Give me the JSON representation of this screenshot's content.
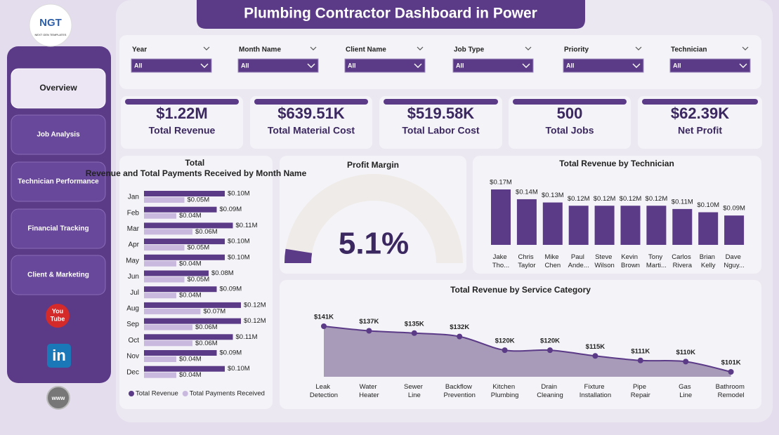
{
  "header": {
    "logo": "NGT",
    "logo_subtitle": "NEXT GEN TEMPLATES",
    "title": "Plumbing Contractor Dashboard in Power"
  },
  "nav": [
    "Overview",
    "Job Analysis",
    "Technician Performance",
    "Financial Tracking",
    "Client & Marketing"
  ],
  "icons": {
    "youtube": [
      "You",
      "Tube"
    ],
    "linkedin": "in",
    "web": "www"
  },
  "filters": [
    {
      "label": "Year",
      "value": "All"
    },
    {
      "label": "Month Name",
      "value": "All"
    },
    {
      "label": "Client Name",
      "value": "All"
    },
    {
      "label": "Job Type",
      "value": "All"
    },
    {
      "label": "Priority",
      "value": "All"
    },
    {
      "label": "Technician",
      "value": "All"
    }
  ],
  "kpis": [
    {
      "value": "$1.22M",
      "label": "Total Revenue"
    },
    {
      "value": "$639.51K",
      "label": "Total Material Cost"
    },
    {
      "value": "$519.58K",
      "label": "Total Labor Cost"
    },
    {
      "value": "500",
      "label": "Total Jobs"
    },
    {
      "value": "$62.39K",
      "label": "Net Profit"
    }
  ],
  "chart_data": [
    {
      "type": "hbar",
      "title": "Total Revenue and Total Payments Received by Month Name",
      "categories": [
        "Jan",
        "Feb",
        "Mar",
        "Apr",
        "May",
        "Jun",
        "Jul",
        "Aug",
        "Sep",
        "Oct",
        "Nov",
        "Dec"
      ],
      "series": [
        {
          "name": "Total Revenue",
          "color": "#5b3a87",
          "values": [
            0.1,
            0.09,
            0.11,
            0.1,
            0.1,
            0.08,
            0.09,
            0.12,
            0.12,
            0.11,
            0.09,
            0.1
          ],
          "value_labels": [
            "$0.10M",
            "$0.09M",
            "$0.11M",
            "$0.10M",
            "$0.10M",
            "$0.08M",
            "$0.09M",
            "$0.12M",
            "$0.12M",
            "$0.11M",
            "$0.09M",
            "$0.10M"
          ]
        },
        {
          "name": "Total Payments Received",
          "color": "#c9b9de",
          "values": [
            0.05,
            0.04,
            0.06,
            0.05,
            0.04,
            0.05,
            0.04,
            0.07,
            0.06,
            0.06,
            0.04,
            0.04
          ],
          "value_labels": [
            "$0.05M",
            "$0.04M",
            "$0.06M",
            "$0.05M",
            "$0.04M",
            "$0.05M",
            "$0.04M",
            "$0.07M",
            "$0.06M",
            "$0.06M",
            "$0.04M",
            "$0.04M"
          ]
        }
      ],
      "legend": "bottom"
    },
    {
      "type": "gauge",
      "title": "Profit Margin",
      "value": 5.1,
      "value_label": "5.1%",
      "range": [
        0,
        100
      ],
      "color": "#5b3a87"
    },
    {
      "type": "bar",
      "title": "Total Revenue by Technician",
      "categories": [
        "Jake Tho...",
        "Chris Taylor",
        "Mike Chen",
        "Paul Ande...",
        "Steve Wilson",
        "Kevin Brown",
        "Tony Marti...",
        "Carlos Rivera",
        "Brian Kelly",
        "Dave Nguy..."
      ],
      "values": [
        0.17,
        0.14,
        0.13,
        0.12,
        0.12,
        0.12,
        0.12,
        0.11,
        0.1,
        0.09
      ],
      "value_labels": [
        "$0.17M",
        "$0.14M",
        "$0.13M",
        "$0.12M",
        "$0.12M",
        "$0.12M",
        "$0.12M",
        "$0.11M",
        "$0.10M",
        "$0.09M"
      ],
      "color": "#5b3a87"
    },
    {
      "type": "area",
      "title": "Total Revenue by Service Category",
      "categories": [
        "Leak Detection",
        "Water Heater",
        "Sewer Line",
        "Backflow Prevention",
        "Kitchen Plumbing",
        "Drain Cleaning",
        "Fixture Installation",
        "Pipe Repair",
        "Gas Line",
        "Bathroom Remodel"
      ],
      "values": [
        141,
        137,
        135,
        132,
        120,
        120,
        115,
        111,
        110,
        101
      ],
      "value_labels": [
        "$141K",
        "$137K",
        "$135K",
        "$132K",
        "$120K",
        "$120K",
        "$115K",
        "$111K",
        "$110K",
        "$101K"
      ],
      "color": "#5b3a87",
      "fill": "#a89ab9"
    }
  ]
}
